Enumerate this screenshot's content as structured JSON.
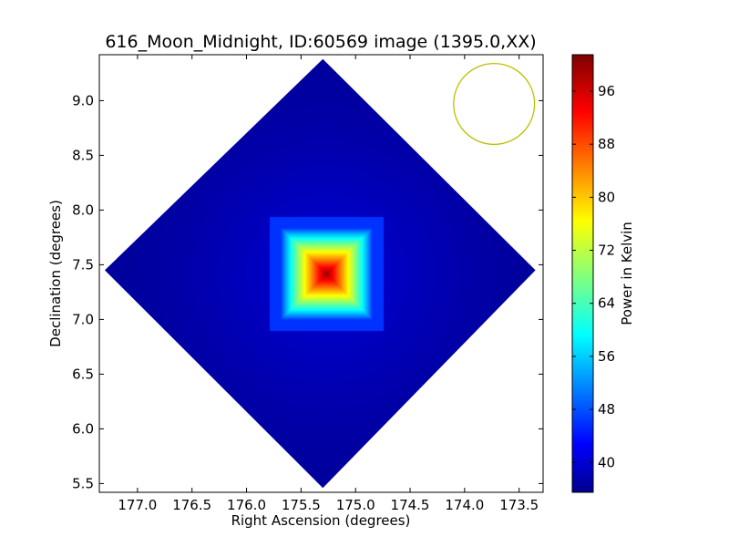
{
  "chart_data": {
    "type": "heatmap",
    "title": "616_Moon_Midnight, ID:60569 image (1395.0,XX)",
    "xlabel": "Right Ascension (degrees)",
    "ylabel": "Declination (degrees)",
    "xlim": [
      177.35,
      173.28
    ],
    "ylim": [
      5.42,
      9.42
    ],
    "x_ticks": [
      "177.0",
      "176.5",
      "176.0",
      "175.5",
      "175.0",
      "174.5",
      "174.0",
      "173.5"
    ],
    "x_tick_values": [
      177.0,
      176.5,
      176.0,
      175.5,
      175.0,
      174.5,
      174.0,
      173.5
    ],
    "y_ticks": [
      "5.5",
      "6.0",
      "6.5",
      "7.0",
      "7.5",
      "8.0",
      "8.5",
      "9.0"
    ],
    "y_tick_values": [
      5.5,
      6.0,
      6.5,
      7.0,
      7.5,
      8.0,
      8.5,
      9.0
    ],
    "colormap": "jet",
    "colorbar": {
      "label": "Power in Kelvin",
      "range": [
        35.5,
        101.5
      ],
      "ticks": [
        "40",
        "48",
        "56",
        "64",
        "72",
        "80",
        "88",
        "96"
      ],
      "tick_values": [
        40,
        48,
        56,
        64,
        72,
        80,
        88,
        96
      ]
    },
    "footprint": {
      "shape": "diamond",
      "vertices_radec": [
        [
          175.3,
          9.38
        ],
        [
          173.35,
          7.45
        ],
        [
          175.3,
          5.46
        ],
        [
          177.3,
          7.45
        ]
      ],
      "background_value": 37,
      "peak_ra": 175.27,
      "peak_dec": 7.42,
      "peak_value": 100,
      "source_half_width_deg": 0.42
    },
    "beam": {
      "center_ra": 173.73,
      "center_dec": 8.97,
      "radius_deg": 0.37,
      "color": "#bfbf00"
    }
  }
}
